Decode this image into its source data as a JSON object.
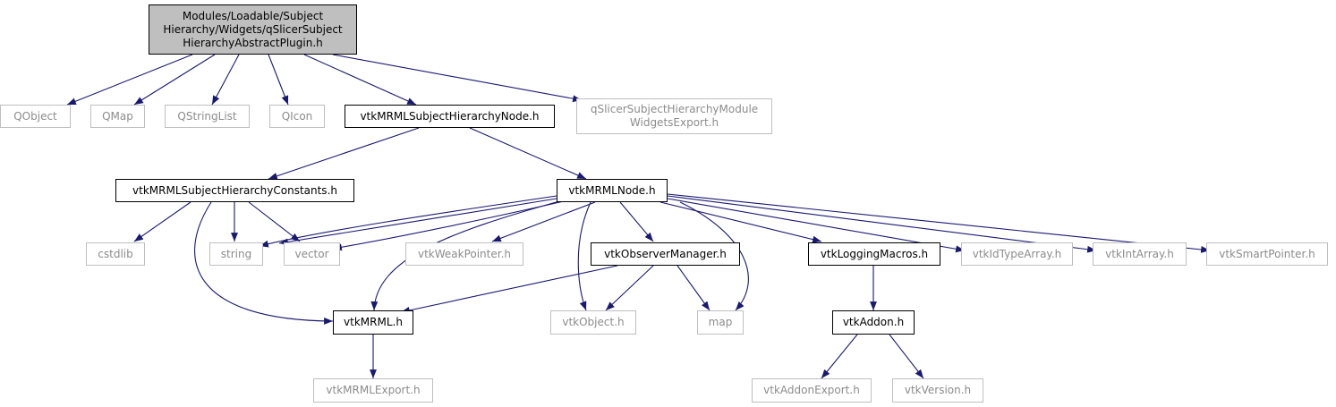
{
  "colors": {
    "edge": "#191970",
    "external_border": "#bfbfbf",
    "external_text": "#8c8c8c",
    "root_fill": "#bfbfbf"
  },
  "nodes": {
    "root": "Modules/Loadable/Subject\nHierarchy/Widgets/qSlicerSubject\nHierarchyAbstractPlugin.h",
    "qobject": "QObject",
    "qmap": "QMap",
    "qstringlist": "QStringList",
    "qicon": "QIcon",
    "shnode": "vtkMRMLSubjectHierarchyNode.h",
    "exporth": "qSlicerSubjectHierarchyModule\nWidgetsExport.h",
    "shconst": "vtkMRMLSubjectHierarchyConstants.h",
    "mrmlnode": "vtkMRMLNode.h",
    "cstdlib": "cstdlib",
    "string": "string",
    "vector": "vector",
    "weakptr": "vtkWeakPointer.h",
    "obsmgr": "vtkObserverManager.h",
    "logmacros": "vtkLoggingMacros.h",
    "idtype": "vtkIdTypeArray.h",
    "intarray": "vtkIntArray.h",
    "smartptr": "vtkSmartPointer.h",
    "mrmlh": "vtkMRML.h",
    "vtkobject": "vtkObject.h",
    "map": "map",
    "addon": "vtkAddon.h",
    "mrmlexport": "vtkMRMLExport.h",
    "addonexport": "vtkAddonExport.h",
    "version": "vtkVersion.h"
  }
}
